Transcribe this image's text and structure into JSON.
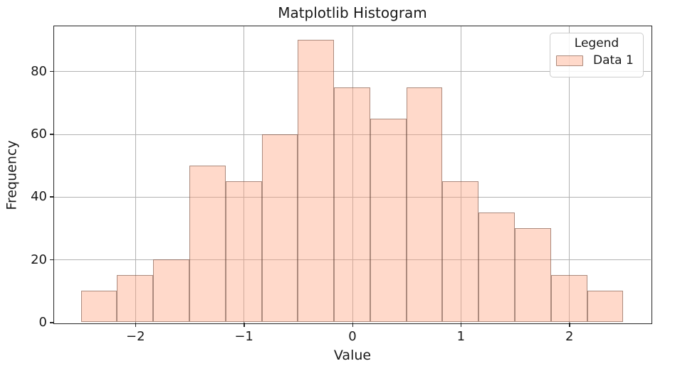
{
  "title": "Matplotlib Histogram",
  "axes": {
    "xlabel": "Value",
    "ylabel": "Frequency"
  },
  "legend": {
    "title": "Legend",
    "entries": [
      {
        "label": "Data 1"
      }
    ]
  },
  "colors": {
    "bar_fill": "#ffa07a",
    "bar_fill_alpha": 0.4,
    "bar_edge": "#5a3c30",
    "bar_edge_alpha": 0.5,
    "grid": "#b2b2b2",
    "spine": "#262626",
    "text": "#1a1a1a",
    "legend_border": "#cccccc"
  },
  "chart_data": {
    "type": "bar",
    "subtype": "histogram",
    "title": "Matplotlib Histogram",
    "xlabel": "Value",
    "ylabel": "Frequency",
    "series": [
      {
        "name": "Data 1",
        "bin_start": -2.5,
        "bin_end": 2.5,
        "bin_count": 15,
        "bin_width": 0.3333,
        "frequencies": [
          10,
          15,
          20,
          50,
          45,
          60,
          90,
          75,
          65,
          75,
          45,
          35,
          30,
          15,
          10
        ]
      }
    ],
    "xlim": [
      -2.75,
      2.75
    ],
    "ylim": [
      0,
      94.5
    ],
    "x_ticks": [
      -2,
      -1,
      0,
      1,
      2
    ],
    "x_tick_labels": [
      "−2",
      "−1",
      "0",
      "1",
      "2"
    ],
    "y_ticks": [
      0,
      20,
      40,
      60,
      80
    ],
    "y_tick_labels": [
      "0",
      "20",
      "40",
      "60",
      "80"
    ],
    "grid": true,
    "legend_position": "upper right"
  }
}
